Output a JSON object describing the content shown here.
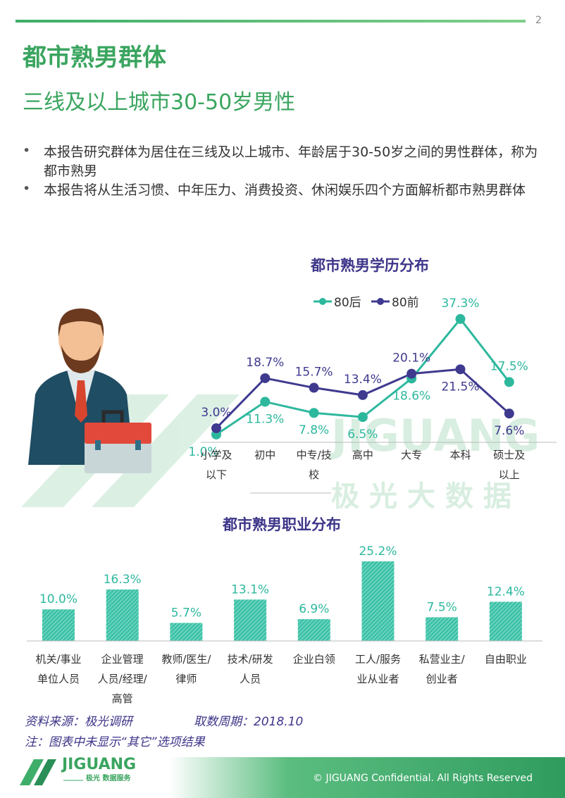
{
  "page_number": "2",
  "title": "都市熟男群体",
  "subtitle": "三线及以上城市30-50岁男性",
  "bullets": [
    "本报告研究群体为居住在三线及以上城市、年龄居于30-50岁之间的男性群体，称为都市熟男",
    "本报告将从生活习惯、中年压力、消费投资、休闲娱乐四个方面解析都市熟男群体"
  ],
  "chart_data": [
    {
      "type": "line",
      "title": "都市熟男学历分布",
      "categories": [
        "小学及以下",
        "初中",
        "中专/技校",
        "高中",
        "大专",
        "本科",
        "硕士及以上"
      ],
      "series": [
        {
          "name": "80后",
          "color": "#2db89e",
          "values": [
            1.0,
            11.3,
            7.8,
            6.5,
            18.6,
            37.3,
            17.5
          ],
          "value_labels": [
            "1.0%",
            "11.3%",
            "7.8%",
            "6.5%",
            "18.6%",
            "37.3%",
            "17.5%"
          ]
        },
        {
          "name": "80前",
          "color": "#3f3a8f",
          "values": [
            3.0,
            18.7,
            15.7,
            13.4,
            20.1,
            21.5,
            7.6
          ],
          "value_labels": [
            "3.0%",
            "18.7%",
            "15.7%",
            "13.4%",
            "20.1%",
            "21.5%",
            "7.6%"
          ]
        }
      ],
      "ylim": [
        0,
        40
      ],
      "legend": "top"
    },
    {
      "type": "bar",
      "title": "都市熟男职业分布",
      "categories": [
        "机关/事业单位人员",
        "企业管理人员/经理/高管",
        "教师/医生/律师",
        "技术/研发人员",
        "企业白领",
        "工人/服务业从业者",
        "私营业主/创业者",
        "自由职业"
      ],
      "values": [
        10.0,
        16.3,
        5.7,
        13.1,
        6.9,
        25.2,
        7.5,
        12.4
      ],
      "value_labels": [
        "10.0%",
        "16.3%",
        "5.7%",
        "13.1%",
        "6.9%",
        "25.2%",
        "7.5%",
        "12.4%"
      ],
      "color": "#3cc2a8",
      "ylim": [
        0,
        30
      ]
    }
  ],
  "source": "资料来源：极光调研",
  "period": "取数周期：2018.10",
  "note": "注：图表中未显示“其它”选项结果",
  "footer": {
    "logo": "JIGUANG",
    "logo_sub": "极光 数据服务",
    "copyright": "© JIGUANG Confidential. All Rights Reserved"
  }
}
